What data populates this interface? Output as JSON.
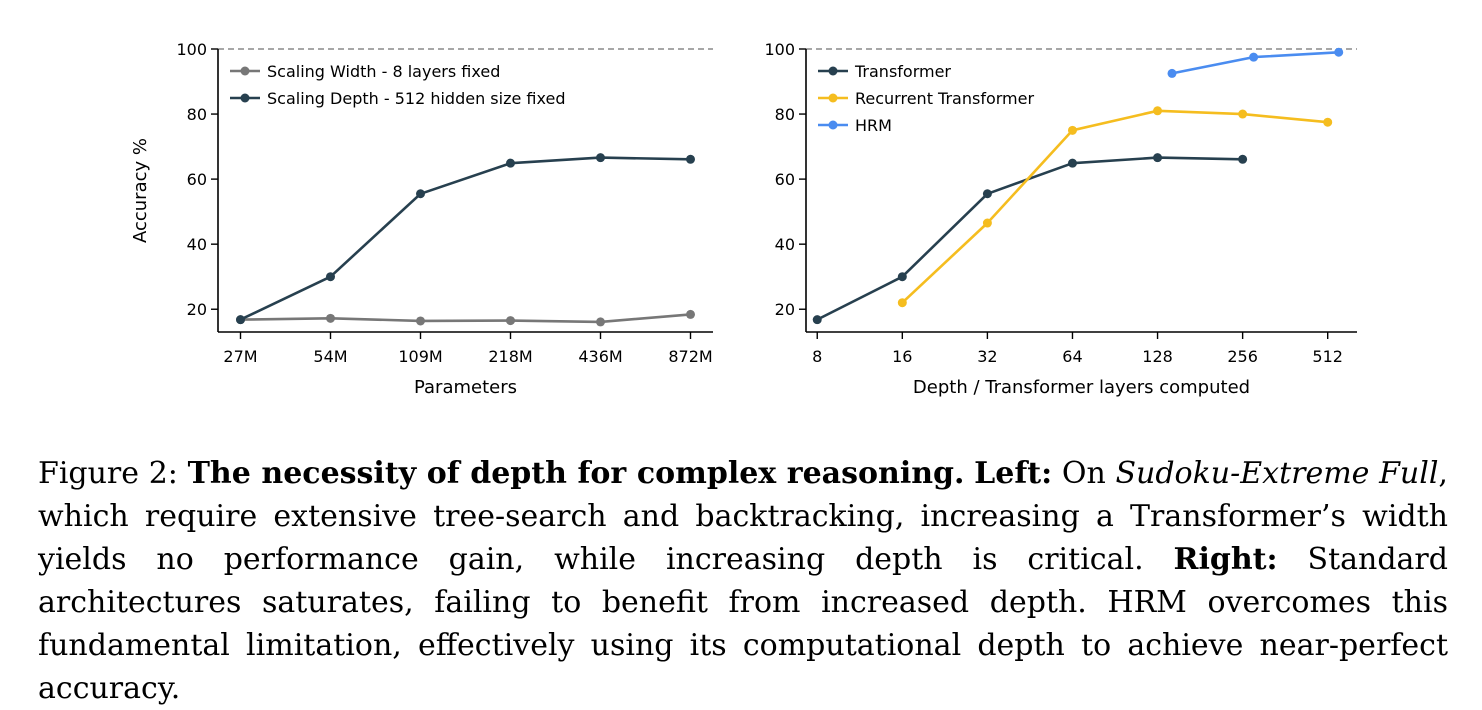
{
  "chart_data": [
    {
      "type": "line",
      "xlabel": "Parameters",
      "ylabel": "Accuracy %",
      "categories": [
        "27M",
        "54M",
        "109M",
        "218M",
        "436M",
        "872M"
      ],
      "ylim": [
        13,
        100
      ],
      "yticks": [
        20,
        40,
        60,
        80,
        100
      ],
      "reference_line": 100,
      "legend_position": "upper-left",
      "series": [
        {
          "name": "Scaling Width - 8 layers fixed",
          "color": "#777777",
          "values": [
            16.8,
            17.2,
            16.4,
            16.5,
            16.1,
            18.4
          ]
        },
        {
          "name": "Scaling Depth - 512 hidden size fixed",
          "color": "#27404f",
          "values": [
            16.8,
            30.0,
            55.5,
            64.9,
            66.6,
            66.1
          ]
        }
      ]
    },
    {
      "type": "line",
      "xlabel": "Depth / Transformer layers computed",
      "ylabel": "",
      "x_scale": "log2",
      "xticks": [
        8,
        16,
        32,
        64,
        128,
        256,
        512
      ],
      "xlim": [
        7.3,
        650
      ],
      "ylim": [
        13,
        100
      ],
      "yticks": [
        20,
        40,
        60,
        80,
        100
      ],
      "reference_line": 100,
      "legend_position": "upper-left",
      "series": [
        {
          "name": "Transformer",
          "color": "#27404f",
          "x": [
            8,
            16,
            32,
            64,
            128,
            256
          ],
          "values": [
            16.8,
            30.0,
            55.5,
            64.9,
            66.6,
            66.1
          ]
        },
        {
          "name": "Recurrent Transformer",
          "color": "#f5bd1f",
          "x": [
            16,
            32,
            64,
            128,
            256,
            512
          ],
          "values": [
            22.0,
            46.5,
            75.0,
            81.0,
            80.0,
            77.5
          ]
        },
        {
          "name": "HRM",
          "color": "#4a8cf0",
          "x": [
            144,
            280,
            560
          ],
          "values": [
            92.5,
            97.5,
            99.0
          ]
        }
      ]
    }
  ],
  "caption": {
    "label": "Figure 2:",
    "title": "The necessity of depth for complex reasoning.",
    "left_label": "Left:",
    "left_pre": "On",
    "dataset": "Sudoku-Extreme Full",
    "left_text": ", which require extensive tree-search and backtracking, increasing a Transformer’s width yields no performance gain, while increasing depth is critical.",
    "right_label": "Right:",
    "right_text": "Standard architectures saturates, failing to benefit from increased depth. HRM overcomes this fundamental limitation, effectively using its computational depth to achieve near-perfect accuracy."
  }
}
